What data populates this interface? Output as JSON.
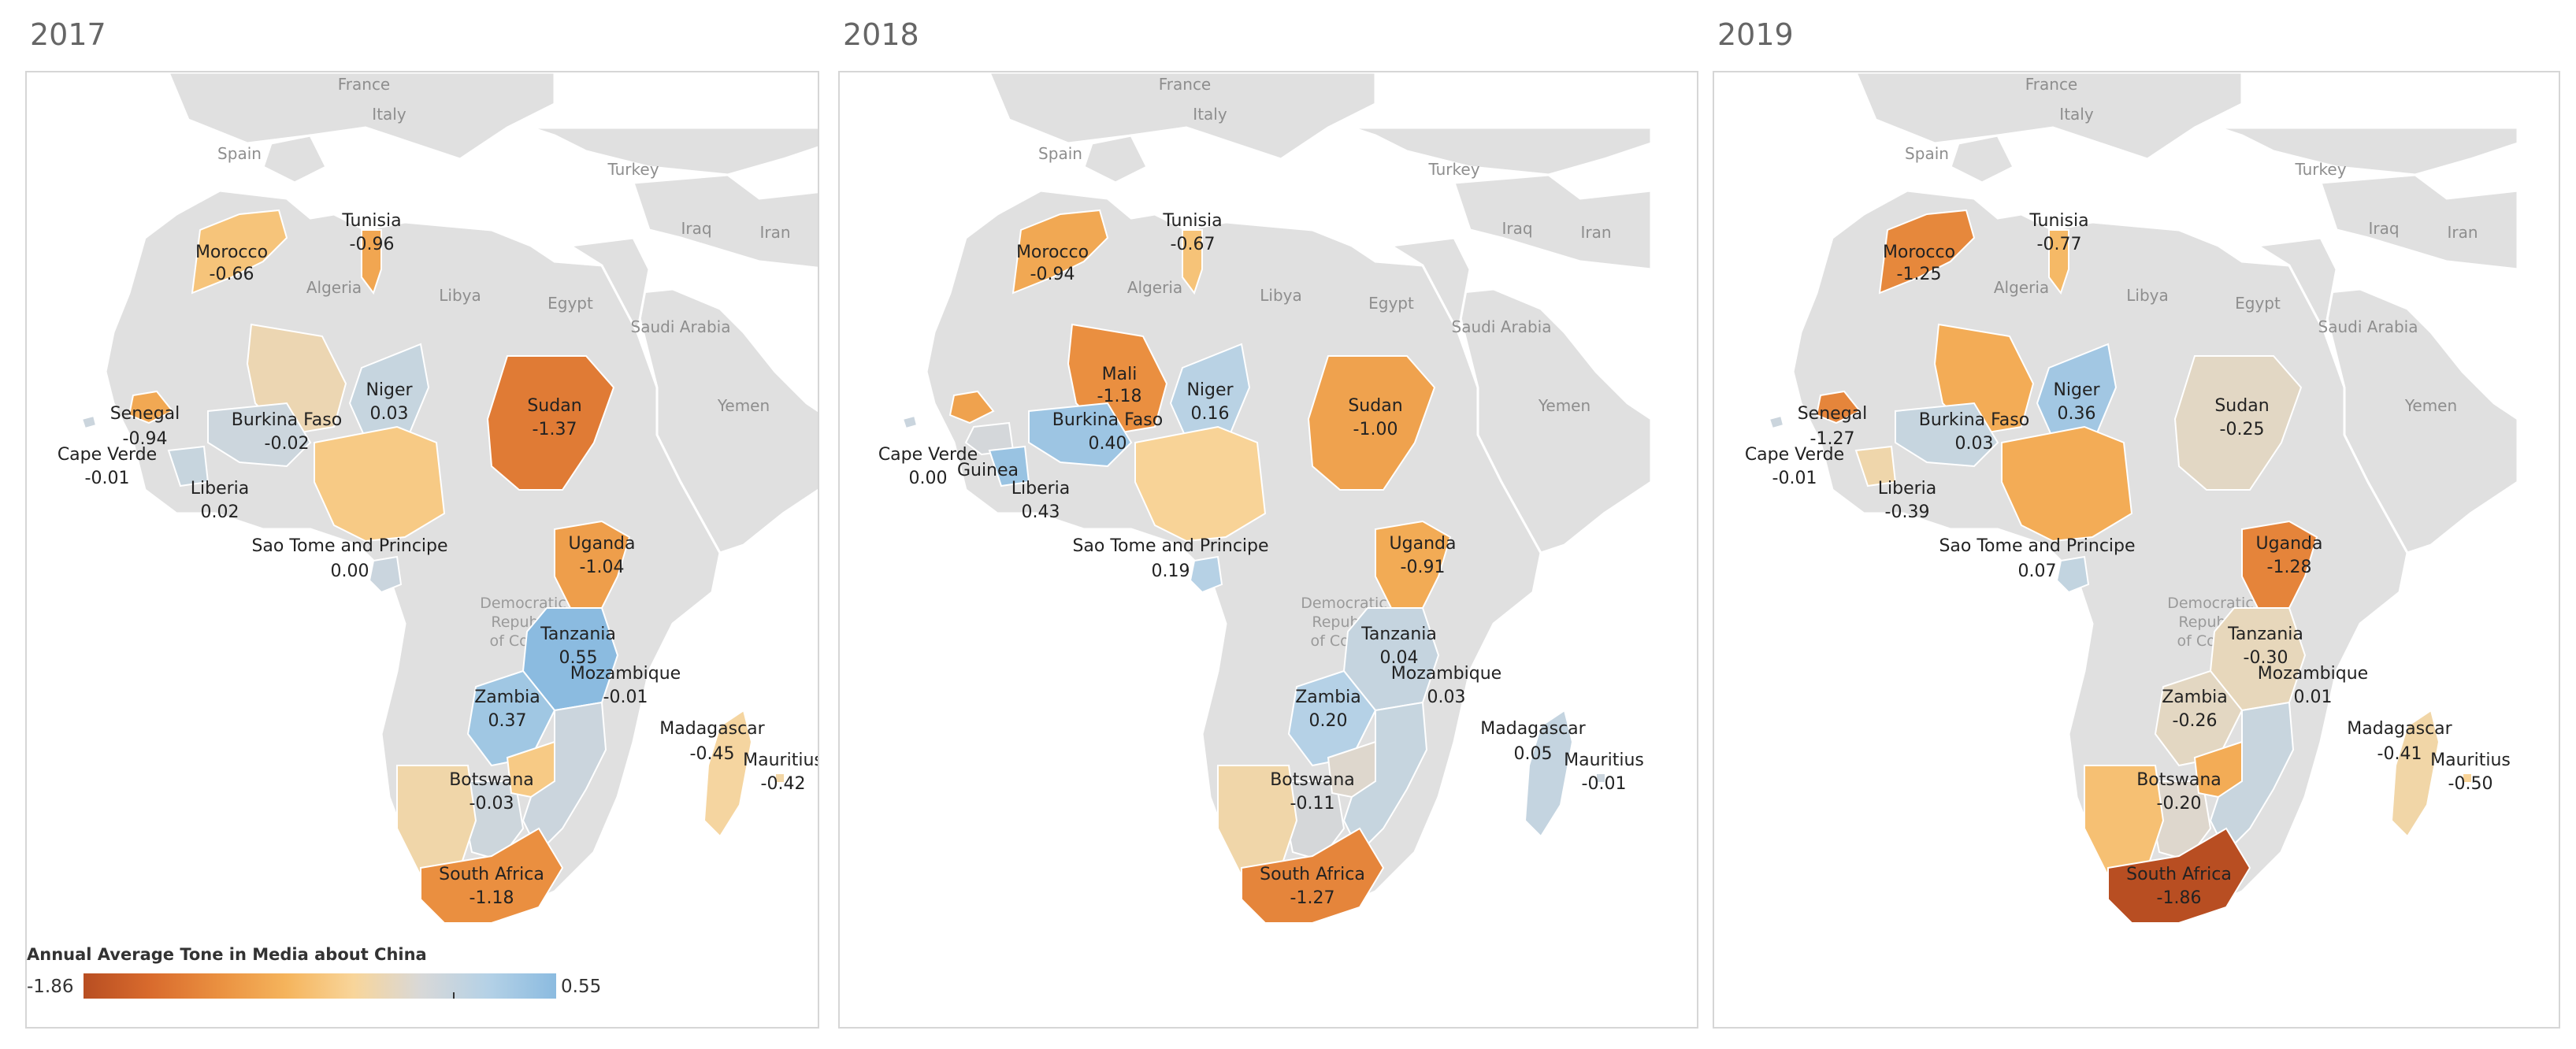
{
  "legend": {
    "title": "Annual Average Tone in Media about China",
    "min_label": "-1.86",
    "max_label": "0.55",
    "min": -1.86,
    "max": 0.55,
    "colors": [
      "#b84e22",
      "#d96b2d",
      "#ea9040",
      "#f5b45c",
      "#f8d59a",
      "#d8d8d8",
      "#b4d1e6",
      "#8bbbe0"
    ]
  },
  "reference_labels": {
    "france": "France",
    "italy": "Italy",
    "spain": "Spain",
    "turkey": "Turkey",
    "iraq": "Iraq",
    "iran": "Iran",
    "algeria": "Algeria",
    "libya": "Libya",
    "egypt": "Egypt",
    "saudi_arabia": "Saudi Arabia",
    "yemen": "Yemen",
    "drc_line1": "Democratic",
    "drc_line2": "Republic",
    "drc_line3": "of Congo"
  },
  "panels": [
    {
      "year": "2017",
      "countries": [
        {
          "id": "tunisia",
          "name": "Tunisia",
          "value": -0.96,
          "label": "-0.96"
        },
        {
          "id": "morocco",
          "name": "Morocco",
          "value": -0.66,
          "label": "-0.66"
        },
        {
          "id": "senegal",
          "name": "Senegal",
          "value": -0.94,
          "label": "-0.94"
        },
        {
          "id": "cape_verde",
          "name": "Cape Verde",
          "value": -0.01,
          "label": "-0.01"
        },
        {
          "id": "mali",
          "name": "",
          "value": -0.35,
          "label": ""
        },
        {
          "id": "niger",
          "name": "Niger",
          "value": 0.03,
          "label": "0.03"
        },
        {
          "id": "burkina_faso",
          "name": "Burkina Faso",
          "value": -0.02,
          "label": "-0.02"
        },
        {
          "id": "liberia",
          "name": "Liberia",
          "value": 0.02,
          "label": "0.02"
        },
        {
          "id": "nigeria",
          "name": "",
          "value": -0.6,
          "label": ""
        },
        {
          "id": "sudan",
          "name": "Sudan",
          "value": -1.37,
          "label": "-1.37"
        },
        {
          "id": "sao_tome",
          "name": "Sao Tome and Principe",
          "value": 0.0,
          "label": "0.00"
        },
        {
          "id": "uganda",
          "name": "Uganda",
          "value": -1.04,
          "label": "-1.04"
        },
        {
          "id": "tanzania",
          "name": "Tanzania",
          "value": 0.55,
          "label": "0.55"
        },
        {
          "id": "zambia",
          "name": "Zambia",
          "value": 0.37,
          "label": "0.37"
        },
        {
          "id": "mozambique",
          "name": "Mozambique",
          "value": -0.01,
          "label": "-0.01"
        },
        {
          "id": "madagascar",
          "name": "Madagascar",
          "value": -0.45,
          "label": "-0.45"
        },
        {
          "id": "mauritius",
          "name": "Mauritius",
          "value": -0.42,
          "label": "-0.42"
        },
        {
          "id": "botswana",
          "name": "Botswana",
          "value": -0.03,
          "label": "-0.03"
        },
        {
          "id": "namibia",
          "name": "",
          "value": -0.4,
          "label": ""
        },
        {
          "id": "zimbabwe",
          "name": "",
          "value": -0.6,
          "label": ""
        },
        {
          "id": "south_africa",
          "name": "South Africa",
          "value": -1.18,
          "label": "-1.18"
        }
      ]
    },
    {
      "year": "2018",
      "countries": [
        {
          "id": "tunisia",
          "name": "Tunisia",
          "value": -0.67,
          "label": "-0.67"
        },
        {
          "id": "morocco",
          "name": "Morocco",
          "value": -0.94,
          "label": "-0.94"
        },
        {
          "id": "senegal",
          "name": "",
          "value": -1.0,
          "label": ""
        },
        {
          "id": "cape_verde",
          "name": "Cape Verde",
          "value": 0.0,
          "label": "0.00"
        },
        {
          "id": "mali",
          "name": "Mali",
          "value": -1.18,
          "label": "-1.18"
        },
        {
          "id": "niger",
          "name": "Niger",
          "value": 0.16,
          "label": "0.16"
        },
        {
          "id": "burkina_faso",
          "name": "Burkina Faso",
          "value": 0.4,
          "label": "0.40"
        },
        {
          "id": "guinea",
          "name": "Guinea",
          "value": -0.1,
          "label": ""
        },
        {
          "id": "liberia",
          "name": "Liberia",
          "value": 0.43,
          "label": "0.43"
        },
        {
          "id": "nigeria",
          "name": "",
          "value": -0.5,
          "label": ""
        },
        {
          "id": "sudan",
          "name": "Sudan",
          "value": -1.0,
          "label": "-1.00"
        },
        {
          "id": "sao_tome",
          "name": "Sao Tome and Principe",
          "value": 0.19,
          "label": "0.19"
        },
        {
          "id": "uganda",
          "name": "Uganda",
          "value": -0.91,
          "label": "-0.91"
        },
        {
          "id": "tanzania",
          "name": "Tanzania",
          "value": 0.04,
          "label": "0.04"
        },
        {
          "id": "zambia",
          "name": "Zambia",
          "value": 0.2,
          "label": "0.20"
        },
        {
          "id": "mozambique",
          "name": "Mozambique",
          "value": 0.03,
          "label": "0.03"
        },
        {
          "id": "madagascar",
          "name": "Madagascar",
          "value": 0.05,
          "label": "0.05"
        },
        {
          "id": "mauritius",
          "name": "Mauritius",
          "value": -0.01,
          "label": "-0.01"
        },
        {
          "id": "botswana",
          "name": "Botswana",
          "value": -0.11,
          "label": "-0.11"
        },
        {
          "id": "namibia",
          "name": "",
          "value": -0.4,
          "label": ""
        },
        {
          "id": "zimbabwe",
          "name": "",
          "value": -0.2,
          "label": ""
        },
        {
          "id": "south_africa",
          "name": "South Africa",
          "value": -1.27,
          "label": "-1.27"
        }
      ]
    },
    {
      "year": "2019",
      "countries": [
        {
          "id": "tunisia",
          "name": "Tunisia",
          "value": -0.77,
          "label": "-0.77"
        },
        {
          "id": "morocco",
          "name": "Morocco",
          "value": -1.25,
          "label": "-1.25"
        },
        {
          "id": "senegal",
          "name": "Senegal",
          "value": -1.27,
          "label": "-1.27"
        },
        {
          "id": "cape_verde",
          "name": "Cape Verde",
          "value": -0.01,
          "label": "-0.01"
        },
        {
          "id": "mali",
          "name": "",
          "value": -0.9,
          "label": ""
        },
        {
          "id": "niger",
          "name": "Niger",
          "value": 0.36,
          "label": "0.36"
        },
        {
          "id": "burkina_faso",
          "name": "Burkina Faso",
          "value": 0.03,
          "label": "0.03"
        },
        {
          "id": "liberia",
          "name": "Liberia",
          "value": -0.39,
          "label": "-0.39"
        },
        {
          "id": "nigeria",
          "name": "",
          "value": -0.9,
          "label": ""
        },
        {
          "id": "sudan",
          "name": "Sudan",
          "value": -0.25,
          "label": "-0.25"
        },
        {
          "id": "sao_tome",
          "name": "Sao Tome and Principe",
          "value": 0.07,
          "label": "0.07"
        },
        {
          "id": "uganda",
          "name": "Uganda",
          "value": -1.28,
          "label": "-1.28"
        },
        {
          "id": "tanzania",
          "name": "Tanzania",
          "value": -0.3,
          "label": "-0.30"
        },
        {
          "id": "zambia",
          "name": "Zambia",
          "value": -0.26,
          "label": "-0.26"
        },
        {
          "id": "mozambique",
          "name": "Mozambique",
          "value": 0.01,
          "label": "0.01"
        },
        {
          "id": "madagascar",
          "name": "Madagascar",
          "value": -0.41,
          "label": "-0.41"
        },
        {
          "id": "mauritius",
          "name": "Mauritius",
          "value": -0.5,
          "label": "-0.50"
        },
        {
          "id": "botswana",
          "name": "Botswana",
          "value": -0.2,
          "label": "-0.20"
        },
        {
          "id": "namibia",
          "name": "",
          "value": -0.7,
          "label": ""
        },
        {
          "id": "zimbabwe",
          "name": "",
          "value": -0.9,
          "label": ""
        },
        {
          "id": "south_africa",
          "name": "South Africa",
          "value": -1.86,
          "label": "-1.86"
        }
      ]
    }
  ]
}
